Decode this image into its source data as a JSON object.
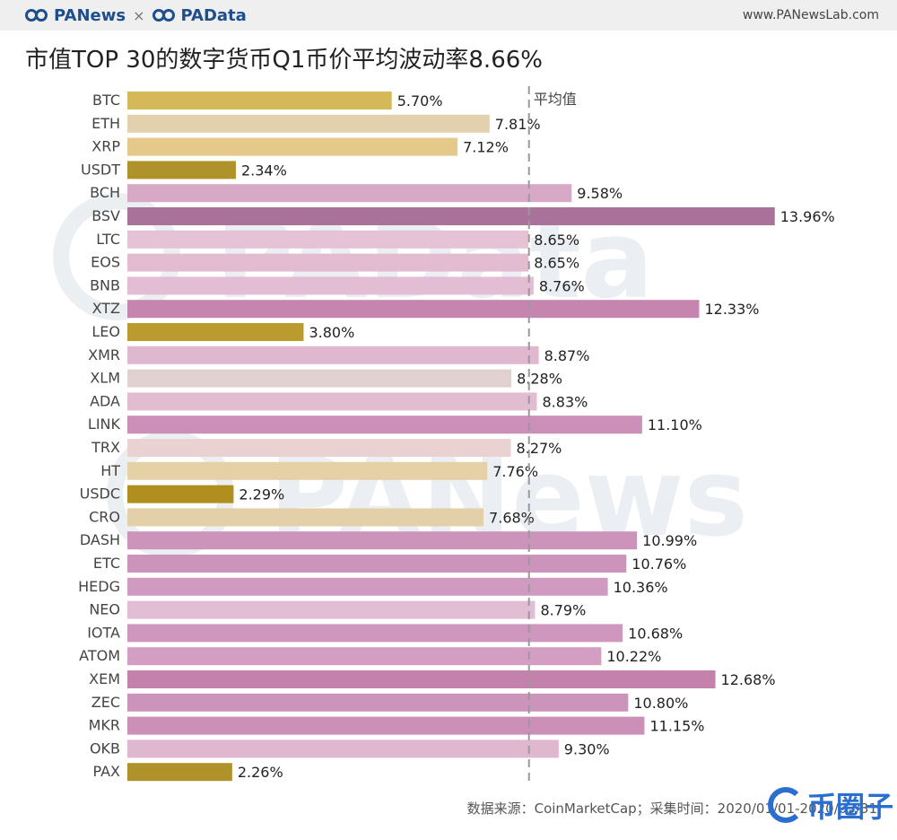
{
  "header": {
    "brand_left": "PANews",
    "separator": "×",
    "brand_right": "PAData",
    "site": "www.PANewsLab.com"
  },
  "title": "市值TOP 30的数字货币Q1币价平均波动率8.66%",
  "footer": {
    "source": "数据来源：CoinMarketCap；采集时间：2020/01/01-2020/03/31",
    "logo_text": "币圈子"
  },
  "watermarks": [
    "PAData",
    "PANews"
  ],
  "chart_data": {
    "type": "bar",
    "orientation": "horizontal",
    "categories": [
      "BTC",
      "ETH",
      "XRP",
      "USDT",
      "BCH",
      "BSV",
      "LTC",
      "EOS",
      "BNB",
      "XTZ",
      "LEO",
      "XMR",
      "XLM",
      "ADA",
      "LINK",
      "TRX",
      "HT",
      "USDC",
      "CRO",
      "DASH",
      "ETC",
      "HEDG",
      "NEO",
      "IOTA",
      "ATOM",
      "XEM",
      "ZEC",
      "MKR",
      "OKB",
      "PAX"
    ],
    "values": [
      5.7,
      7.81,
      7.12,
      2.34,
      9.58,
      13.96,
      8.65,
      8.65,
      8.76,
      12.33,
      3.8,
      8.87,
      8.28,
      8.83,
      11.1,
      8.27,
      7.76,
      2.29,
      7.68,
      10.99,
      10.76,
      10.36,
      8.79,
      10.68,
      10.22,
      12.68,
      10.8,
      11.15,
      9.3,
      2.26
    ],
    "labels": [
      "5.70%",
      "7.81%",
      "7.12%",
      "2.34%",
      "9.58%",
      "13.96%",
      "8.65%",
      "8.65%",
      "8.76%",
      "12.33%",
      "3.80%",
      "8.87%",
      "8.28%",
      "8.83%",
      "11.10%",
      "8.27%",
      "7.76%",
      "2.29%",
      "7.68%",
      "10.99%",
      "10.76%",
      "10.36%",
      "8.79%",
      "10.68%",
      "10.22%",
      "12.68%",
      "10.80%",
      "11.15%",
      "9.30%",
      "2.26%"
    ],
    "colors": [
      "#d4b85a",
      "#e3d0ad",
      "#e5c98a",
      "#b0922a",
      "#d7a9c6",
      "#a8729a",
      "#e6c2d6",
      "#e4bcd2",
      "#e3bdd3",
      "#c585ae",
      "#bb9a2e",
      "#dfb7cf",
      "#e2d1d1",
      "#e2bdd2",
      "#cc8fb8",
      "#ead2d2",
      "#e6d0a6",
      "#b08f1e",
      "#e3d0a8",
      "#cd94bb",
      "#cd94bb",
      "#d19bc1",
      "#e3bdd3",
      "#cf97bd",
      "#d39ec2",
      "#c381ac",
      "#cd94bb",
      "#cc8fb8",
      "#dfb7cf",
      "#b0922a"
    ],
    "average": 8.66,
    "average_label": "平均值",
    "xlim": [
      0,
      14.5
    ],
    "grid": false,
    "legend": "none"
  }
}
